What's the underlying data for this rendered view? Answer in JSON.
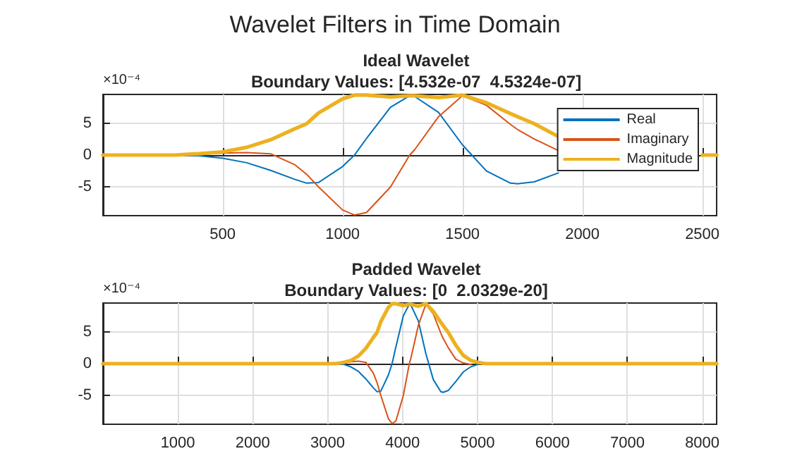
{
  "chart_data": [
    {
      "type": "line",
      "title": "Ideal Wavelet",
      "subtitle": "Boundary Values: [4.532e-07  4.5324e-07]",
      "annotations": [
        "Wavelet Filters in Time Domain"
      ],
      "ylabel": "×10⁻⁴",
      "x": [
        1,
        200,
        300,
        400,
        500,
        600,
        700,
        800,
        850,
        900,
        1000,
        1050,
        1100,
        1200,
        1280,
        1300,
        1400,
        1500,
        1600,
        1700,
        1730,
        1800,
        1900,
        2000,
        2100,
        2200,
        2500,
        2560
      ],
      "series": [
        {
          "name": "Real",
          "color": "#0072bd",
          "values": [
            null,
            null,
            0,
            -0.1,
            -0.5,
            -1.2,
            -2.4,
            -3.8,
            -4.4,
            -4.3,
            -1.8,
            0,
            2.6,
            7.5,
            9.3,
            9.2,
            6.7,
            1.6,
            -2.5,
            -4.4,
            -4.5,
            -4.2,
            -2.8,
            null,
            null,
            null,
            null,
            null
          ]
        },
        {
          "name": "Imaginary",
          "color": "#d95319",
          "values": [
            null,
            null,
            null,
            0.1,
            0.3,
            0.4,
            0.2,
            -1.5,
            -3,
            -5,
            -8.6,
            -9.4,
            -9,
            -5,
            0,
            0.8,
            6,
            9.3,
            7.8,
            4.8,
            4,
            2.5,
            0.7,
            null,
            null,
            null,
            null,
            null
          ]
        },
        {
          "name": "Magnitude",
          "color": "#edb120",
          "values": [
            0,
            0,
            0,
            0.2,
            0.5,
            1.2,
            2.4,
            4.1,
            4.9,
            6.6,
            8.8,
            9.4,
            9.4,
            9.1,
            9.3,
            9.3,
            9,
            9.4,
            8.2,
            6.5,
            6,
            4.9,
            2.9,
            null,
            null,
            null,
            0,
            0
          ]
        }
      ],
      "xlim": [
        1,
        2560
      ],
      "xticks": [
        500,
        1000,
        1500,
        2000,
        2500
      ],
      "ylim": [
        -9.5,
        9.5
      ],
      "yticks": [
        -5,
        0,
        5
      ],
      "grid": true,
      "legend": "top right"
    },
    {
      "type": "line",
      "title": "Padded Wavelet",
      "subtitle": "Boundary Values: [0  2.0329e-20]",
      "ylabel": "×10⁻⁴",
      "x": [
        1,
        3010,
        3110,
        3210,
        3310,
        3410,
        3510,
        3610,
        3660,
        3710,
        3810,
        3860,
        3910,
        4010,
        4090,
        4110,
        4210,
        4310,
        4410,
        4510,
        4540,
        4610,
        4710,
        4810,
        4910,
        5010,
        5110,
        8192
      ],
      "series": [
        {
          "color": "#0072bd",
          "values": [
            null,
            null,
            0,
            -0.1,
            -0.5,
            -1.2,
            -2.4,
            -3.8,
            -4.4,
            -4.3,
            -1.8,
            0,
            2.6,
            7.5,
            9.3,
            9.2,
            6.7,
            1.6,
            -2.5,
            -4.4,
            -4.5,
            -4.2,
            -2.8,
            -1.3,
            -0.5,
            -0.1,
            null,
            null
          ]
        },
        {
          "color": "#d95319",
          "values": [
            null,
            null,
            null,
            0.1,
            0.3,
            0.4,
            0.2,
            -1.5,
            -3,
            -5,
            -8.6,
            -9.4,
            -9,
            -5,
            0,
            0.8,
            6,
            9.3,
            7.8,
            4.8,
            4,
            2.5,
            0.7,
            0.1,
            -0.1,
            null,
            null,
            null
          ]
        },
        {
          "color": "#edb120",
          "values": [
            0,
            0,
            0,
            0.2,
            0.5,
            1.2,
            2.4,
            4.1,
            4.9,
            6.6,
            8.8,
            9.4,
            9.4,
            9.1,
            9.3,
            9.3,
            9,
            9.4,
            8.2,
            6.5,
            6,
            4.9,
            2.9,
            1.3,
            0.5,
            0.2,
            0,
            0
          ]
        }
      ],
      "xlim": [
        1,
        8192
      ],
      "xticks": [
        1000,
        2000,
        3000,
        4000,
        5000,
        6000,
        7000,
        8000
      ],
      "ylim": [
        -9.5,
        9.5
      ],
      "yticks": [
        -5,
        0,
        5
      ],
      "grid": true
    }
  ]
}
